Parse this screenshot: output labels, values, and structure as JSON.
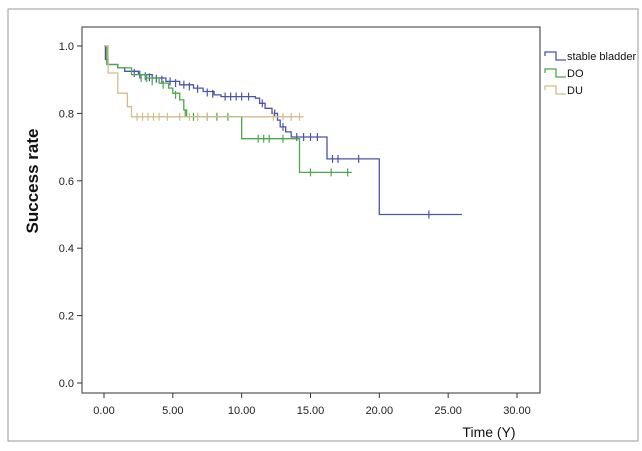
{
  "chart_data": {
    "type": "line",
    "title": "",
    "xlabel": "Time (Y)",
    "ylabel": "Success rate",
    "xlim": [
      0,
      30
    ],
    "ylim": [
      0,
      1
    ],
    "x_ticks": [
      "0.00",
      "5.00",
      "10.00",
      "15.00",
      "20.00",
      "25.00",
      "30.00"
    ],
    "y_ticks": [
      "0.0",
      "0.2",
      "0.4",
      "0.6",
      "0.8",
      "1.0"
    ],
    "grid": false,
    "legend": "top-right",
    "series": [
      {
        "name": "stable bladder",
        "color": "#4a55a8",
        "steps": [
          [
            0,
            1.0
          ],
          [
            0.1,
            0.96
          ],
          [
            0.3,
            0.945
          ],
          [
            1.0,
            0.935
          ],
          [
            1.5,
            0.925
          ],
          [
            2.5,
            0.915
          ],
          [
            3.5,
            0.905
          ],
          [
            4.5,
            0.895
          ],
          [
            5.5,
            0.885
          ],
          [
            6.5,
            0.875
          ],
          [
            7.2,
            0.865
          ],
          [
            8.0,
            0.855
          ],
          [
            8.5,
            0.85
          ],
          [
            11.0,
            0.845
          ],
          [
            11.3,
            0.83
          ],
          [
            11.7,
            0.815
          ],
          [
            12.2,
            0.8
          ],
          [
            12.6,
            0.78
          ],
          [
            12.8,
            0.76
          ],
          [
            13.2,
            0.745
          ],
          [
            13.6,
            0.73
          ],
          [
            16.2,
            0.665
          ],
          [
            20.0,
            0.5
          ],
          [
            26.0,
            0.5
          ]
        ],
        "censored": [
          [
            2.2,
            0.92
          ],
          [
            2.6,
            0.915
          ],
          [
            3.0,
            0.91
          ],
          [
            3.3,
            0.907
          ],
          [
            3.8,
            0.903
          ],
          [
            4.2,
            0.9
          ],
          [
            4.8,
            0.895
          ],
          [
            5.2,
            0.89
          ],
          [
            5.8,
            0.885
          ],
          [
            6.2,
            0.88
          ],
          [
            6.8,
            0.873
          ],
          [
            7.5,
            0.862
          ],
          [
            7.9,
            0.858
          ],
          [
            8.8,
            0.85
          ],
          [
            9.2,
            0.85
          ],
          [
            9.6,
            0.85
          ],
          [
            10.0,
            0.85
          ],
          [
            10.5,
            0.85
          ],
          [
            11.5,
            0.83
          ],
          [
            12.4,
            0.8
          ],
          [
            13.0,
            0.76
          ],
          [
            14.0,
            0.73
          ],
          [
            14.5,
            0.73
          ],
          [
            15.0,
            0.73
          ],
          [
            15.5,
            0.73
          ],
          [
            16.6,
            0.665
          ],
          [
            17.0,
            0.665
          ],
          [
            18.5,
            0.665
          ],
          [
            23.6,
            0.5
          ]
        ]
      },
      {
        "name": "DO",
        "color": "#4aa84a",
        "steps": [
          [
            0,
            1.0
          ],
          [
            0.2,
            0.945
          ],
          [
            1.0,
            0.935
          ],
          [
            2.0,
            0.915
          ],
          [
            3.0,
            0.905
          ],
          [
            4.0,
            0.89
          ],
          [
            4.7,
            0.875
          ],
          [
            5.0,
            0.86
          ],
          [
            5.5,
            0.84
          ],
          [
            5.8,
            0.81
          ],
          [
            6.0,
            0.79
          ],
          [
            10.0,
            0.725
          ],
          [
            14.2,
            0.625
          ],
          [
            18.0,
            0.625
          ]
        ],
        "censored": [
          [
            2.7,
            0.905
          ],
          [
            3.1,
            0.905
          ],
          [
            3.5,
            0.895
          ],
          [
            4.3,
            0.885
          ],
          [
            5.2,
            0.855
          ],
          [
            5.9,
            0.8
          ],
          [
            6.5,
            0.79
          ],
          [
            7.5,
            0.79
          ],
          [
            8.2,
            0.79
          ],
          [
            9.0,
            0.79
          ],
          [
            11.2,
            0.725
          ],
          [
            11.6,
            0.725
          ],
          [
            12.0,
            0.725
          ],
          [
            13.0,
            0.725
          ],
          [
            15.0,
            0.625
          ],
          [
            16.5,
            0.625
          ],
          [
            17.7,
            0.625
          ]
        ]
      },
      {
        "name": "DU",
        "color": "#cdbf8e",
        "steps": [
          [
            0,
            1.0
          ],
          [
            0.3,
            0.92
          ],
          [
            1.0,
            0.86
          ],
          [
            1.7,
            0.82
          ],
          [
            2.0,
            0.79
          ],
          [
            14.5,
            0.79
          ]
        ],
        "censored": [
          [
            2.4,
            0.79
          ],
          [
            2.8,
            0.79
          ],
          [
            3.2,
            0.79
          ],
          [
            3.6,
            0.79
          ],
          [
            4.0,
            0.79
          ],
          [
            4.6,
            0.79
          ],
          [
            5.5,
            0.79
          ],
          [
            6.2,
            0.79
          ],
          [
            6.8,
            0.79
          ],
          [
            7.5,
            0.79
          ],
          [
            12.3,
            0.79
          ],
          [
            13.0,
            0.79
          ],
          [
            13.6,
            0.79
          ],
          [
            14.2,
            0.79
          ]
        ]
      }
    ]
  }
}
